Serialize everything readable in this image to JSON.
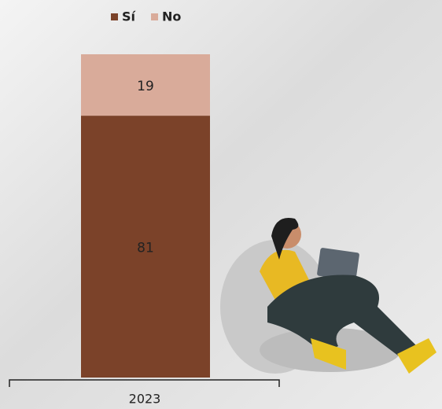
{
  "chart_data": {
    "type": "stacked-bar",
    "categories": [
      "2023"
    ],
    "series": [
      {
        "name": "Sí",
        "color": "#7b4229",
        "values": [
          81
        ]
      },
      {
        "name": "No",
        "color": "#d9ab9a",
        "values": [
          19
        ]
      }
    ],
    "ylim": [
      0,
      100
    ]
  }
}
